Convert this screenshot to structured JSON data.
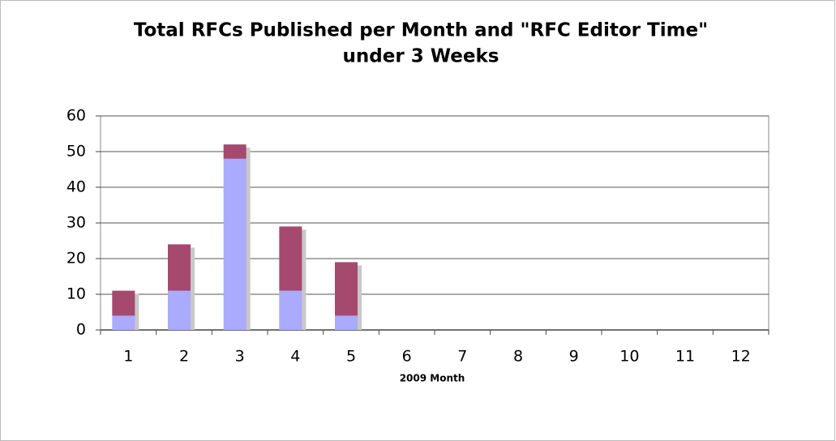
{
  "chart_data": {
    "type": "stacked_bar",
    "title": [
      "Total RFCs Published per Month and \"RFC Editor Time\"",
      "under 3 Weeks"
    ],
    "x_label": "2009 Month",
    "categories": [
      1,
      2,
      3,
      4,
      5,
      6,
      7,
      8,
      9,
      10,
      11,
      12
    ],
    "series": [
      {
        "color": "#aaaaff",
        "values": [
          4,
          11,
          48,
          11,
          4,
          null,
          null,
          null,
          null,
          null,
          null,
          null
        ]
      },
      {
        "color": "#a5496f",
        "values": [
          7,
          13,
          4,
          18,
          15,
          null,
          null,
          null,
          null,
          null,
          null,
          null
        ]
      }
    ],
    "ylim": [
      0,
      60
    ],
    "yticks": [
      0,
      10,
      20,
      30,
      40,
      50,
      60
    ],
    "grid": true
  }
}
